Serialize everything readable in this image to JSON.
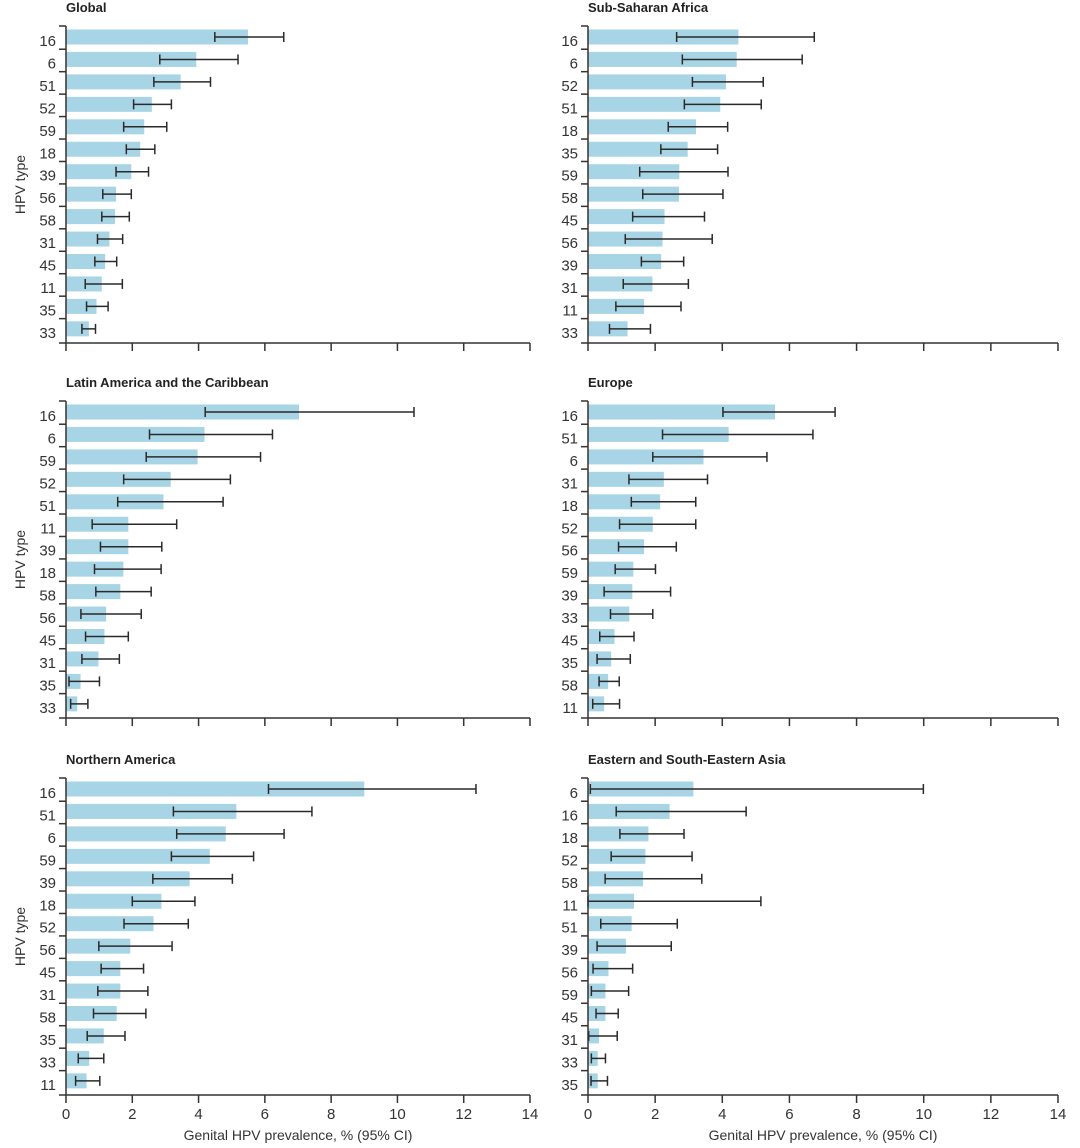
{
  "colors": {
    "bar": "#a8d5e5",
    "errorbar": "#2a2a2a",
    "axis": "#333333"
  },
  "chart_data": [
    {
      "type": "bar",
      "orientation": "horizontal",
      "title": "Global",
      "ylabel": "HPV type",
      "xlabel": "",
      "xlim": [
        0,
        14
      ],
      "xticks": [
        0,
        2,
        4,
        6,
        8,
        10,
        12,
        14
      ],
      "show_tick_labels": false,
      "categories": [
        "16",
        "6",
        "51",
        "52",
        "59",
        "18",
        "39",
        "56",
        "58",
        "31",
        "45",
        "11",
        "35",
        "33"
      ],
      "values": [
        5.49,
        3.93,
        3.46,
        2.59,
        2.36,
        2.24,
        1.97,
        1.51,
        1.48,
        1.31,
        1.18,
        1.08,
        0.92,
        0.69
      ],
      "ci_lower": [
        4.49,
        2.83,
        2.65,
        2.04,
        1.74,
        1.82,
        1.51,
        1.11,
        1.08,
        0.95,
        0.87,
        0.58,
        0.62,
        0.48
      ],
      "ci_upper": [
        6.57,
        5.19,
        4.36,
        3.18,
        3.04,
        2.68,
        2.49,
        1.97,
        1.91,
        1.71,
        1.53,
        1.7,
        1.27,
        0.89
      ]
    },
    {
      "type": "bar",
      "orientation": "horizontal",
      "title": "Sub-Saharan Africa",
      "ylabel": "",
      "xlabel": "",
      "xlim": [
        0,
        14
      ],
      "xticks": [
        0,
        2,
        4,
        6,
        8,
        10,
        12,
        14
      ],
      "show_tick_labels": false,
      "categories": [
        "16",
        "6",
        "52",
        "51",
        "18",
        "35",
        "59",
        "58",
        "45",
        "56",
        "39",
        "31",
        "11",
        "33"
      ],
      "values": [
        4.48,
        4.43,
        4.11,
        3.94,
        3.22,
        2.97,
        2.72,
        2.71,
        2.28,
        2.22,
        2.18,
        1.92,
        1.67,
        1.18
      ],
      "ci_lower": [
        2.64,
        2.81,
        3.11,
        2.87,
        2.39,
        2.17,
        1.54,
        1.63,
        1.33,
        1.11,
        1.59,
        1.05,
        0.83,
        0.64
      ],
      "ci_upper": [
        6.74,
        6.38,
        5.22,
        5.16,
        4.16,
        3.86,
        4.17,
        4.02,
        3.47,
        3.7,
        2.85,
        2.99,
        2.77,
        1.86
      ]
    },
    {
      "type": "bar",
      "orientation": "horizontal",
      "title": "Latin America and the Caribbean",
      "ylabel": "HPV type",
      "xlabel": "",
      "xlim": [
        0,
        14
      ],
      "xticks": [
        0,
        2,
        4,
        6,
        8,
        10,
        12,
        14
      ],
      "show_tick_labels": false,
      "categories": [
        "16",
        "6",
        "59",
        "52",
        "51",
        "11",
        "39",
        "18",
        "58",
        "56",
        "45",
        "31",
        "35",
        "33"
      ],
      "values": [
        7.03,
        4.18,
        3.97,
        3.16,
        2.94,
        1.88,
        1.88,
        1.73,
        1.64,
        1.21,
        1.16,
        0.98,
        0.44,
        0.34
      ],
      "ci_lower": [
        4.2,
        2.52,
        2.42,
        1.74,
        1.56,
        0.79,
        1.04,
        0.86,
        0.9,
        0.45,
        0.59,
        0.48,
        0.09,
        0.14
      ],
      "ci_upper": [
        10.5,
        6.23,
        5.87,
        4.96,
        4.74,
        3.34,
        2.89,
        2.87,
        2.57,
        2.27,
        1.88,
        1.61,
        1.01,
        0.66
      ]
    },
    {
      "type": "bar",
      "orientation": "horizontal",
      "title": "Europe",
      "ylabel": "",
      "xlabel": "",
      "xlim": [
        0,
        14
      ],
      "xticks": [
        0,
        2,
        4,
        6,
        8,
        10,
        12,
        14
      ],
      "show_tick_labels": false,
      "categories": [
        "16",
        "51",
        "6",
        "31",
        "18",
        "52",
        "56",
        "59",
        "39",
        "33",
        "45",
        "35",
        "58",
        "11"
      ],
      "values": [
        5.57,
        4.19,
        3.44,
        2.26,
        2.15,
        1.93,
        1.67,
        1.35,
        1.32,
        1.23,
        0.79,
        0.69,
        0.6,
        0.48
      ],
      "ci_lower": [
        4.02,
        2.22,
        1.93,
        1.22,
        1.29,
        0.94,
        0.91,
        0.81,
        0.48,
        0.67,
        0.35,
        0.27,
        0.33,
        0.14
      ],
      "ci_upper": [
        7.36,
        6.7,
        5.33,
        3.56,
        3.21,
        3.21,
        2.63,
        2.01,
        2.46,
        1.93,
        1.37,
        1.26,
        0.93,
        0.94
      ]
    },
    {
      "type": "bar",
      "orientation": "horizontal",
      "title": "Northern America",
      "ylabel": "HPV type",
      "xlabel": "Genital HPV prevalence, % (95% CI)",
      "xlim": [
        0,
        14
      ],
      "xticks": [
        0,
        2,
        4,
        6,
        8,
        10,
        12,
        14
      ],
      "show_tick_labels": true,
      "categories": [
        "16",
        "51",
        "6",
        "59",
        "39",
        "18",
        "52",
        "56",
        "45",
        "31",
        "58",
        "35",
        "33",
        "11"
      ],
      "values": [
        9.0,
        5.14,
        4.82,
        4.34,
        3.73,
        2.88,
        2.64,
        1.94,
        1.64,
        1.64,
        1.53,
        1.14,
        0.7,
        0.62
      ],
      "ci_lower": [
        6.11,
        3.24,
        3.34,
        3.18,
        2.62,
        2.0,
        1.75,
        0.99,
        1.06,
        0.96,
        0.83,
        0.64,
        0.37,
        0.29
      ],
      "ci_upper": [
        12.37,
        7.42,
        6.58,
        5.66,
        5.02,
        3.89,
        3.69,
        3.2,
        2.34,
        2.47,
        2.41,
        1.78,
        1.14,
        1.02
      ]
    },
    {
      "type": "bar",
      "orientation": "horizontal",
      "title": "Eastern and South-Eastern Asia",
      "ylabel": "",
      "xlabel": "Genital HPV prevalence, % (95% CI)",
      "xlim": [
        0,
        14
      ],
      "xticks": [
        0,
        2,
        4,
        6,
        8,
        10,
        12,
        14
      ],
      "show_tick_labels": true,
      "categories": [
        "6",
        "16",
        "18",
        "52",
        "58",
        "11",
        "51",
        "39",
        "56",
        "59",
        "45",
        "31",
        "33",
        "35"
      ],
      "values": [
        3.14,
        2.43,
        1.8,
        1.71,
        1.64,
        1.37,
        1.3,
        1.13,
        0.61,
        0.52,
        0.52,
        0.33,
        0.29,
        0.29
      ],
      "ci_lower": [
        0.07,
        0.84,
        0.95,
        0.69,
        0.51,
        0.0,
        0.38,
        0.27,
        0.15,
        0.1,
        0.24,
        0.02,
        0.1,
        0.09
      ],
      "ci_upper": [
        9.99,
        4.71,
        2.86,
        3.1,
        3.39,
        5.15,
        2.66,
        2.48,
        1.33,
        1.21,
        0.9,
        0.87,
        0.52,
        0.58
      ]
    }
  ]
}
